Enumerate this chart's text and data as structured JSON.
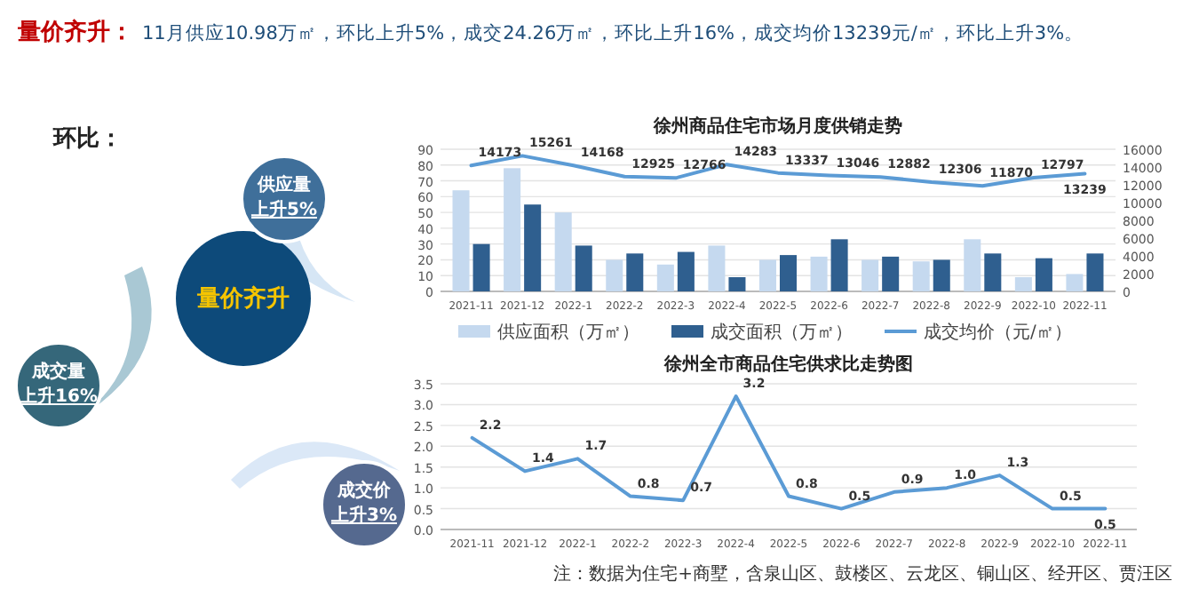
{
  "chart_data": [
    {
      "type": "other",
      "title": "量价齐升：",
      "subtitle": "11月供应10.98万㎡，环比上升5%，成交24.26万㎡，环比上升16%，成交均价13239元/㎡，环比上升3%。",
      "annotations": [
        "环比：",
        "量价齐升",
        "供应量",
        "上升5%",
        "成交量",
        "上升16%",
        "成交价",
        "上升3%"
      ]
    },
    {
      "type": "bar",
      "title": "徐州商品住宅市场月度供销走势",
      "categories": [
        "2021-11",
        "2021-12",
        "2022-1",
        "2022-2",
        "2022-3",
        "2022-4",
        "2022-5",
        "2022-6",
        "2022-7",
        "2022-8",
        "2022-9",
        "2022-10",
        "2022-11"
      ],
      "series": [
        {
          "name": "供应面积（万㎡）",
          "color": "#c5d9ef",
          "values": [
            64,
            78,
            50,
            20,
            17,
            29,
            20,
            22,
            20,
            19,
            33,
            9,
            11
          ]
        },
        {
          "name": "成交面积（万㎡）",
          "color": "#2f5f8f",
          "values": [
            30,
            55,
            29,
            24,
            25,
            9,
            23,
            33,
            22,
            20,
            24,
            21,
            24
          ]
        },
        {
          "name": "成交均价（元/㎡）",
          "type": "line",
          "axis": "y2",
          "color": "#5b9bd5",
          "values": [
            14173,
            15261,
            14168,
            12925,
            12766,
            14283,
            13337,
            13046,
            12882,
            12306,
            11870,
            12797,
            13239
          ],
          "value_labels": [
            "14173",
            "15261",
            "14168",
            "12925",
            "12766",
            "14283",
            "13337",
            "13046",
            "12882",
            "12306",
            "11870",
            "12797",
            "13239"
          ]
        }
      ],
      "ylim": [
        0,
        90
      ],
      "yticks": [
        0,
        10,
        20,
        30,
        40,
        50,
        60,
        70,
        80,
        90
      ],
      "y2lim": [
        0,
        16000
      ],
      "y2ticks": [
        0,
        2000,
        4000,
        6000,
        8000,
        10000,
        12000,
        14000,
        16000
      ],
      "grid": "y",
      "legend": "bottom"
    },
    {
      "type": "line",
      "title": "徐州全市商品住宅供求比走势图",
      "categories": [
        "2021-11",
        "2021-12",
        "2022-1",
        "2022-2",
        "2022-3",
        "2022-4",
        "2022-5",
        "2022-6",
        "2022-7",
        "2022-8",
        "2022-9",
        "2022-10",
        "2022-11"
      ],
      "series": [
        {
          "color": "#5b9bd5",
          "values": [
            2.2,
            1.4,
            1.7,
            0.8,
            0.7,
            3.2,
            0.8,
            0.5,
            0.9,
            1.0,
            1.3,
            0.5,
            0.5
          ],
          "value_labels": [
            "2.2",
            "1.4",
            "1.7",
            "0.8",
            "0.7",
            "3.2",
            "0.8",
            "0.5",
            "0.9",
            "1.0",
            "1.3",
            "0.5",
            "0.5"
          ]
        }
      ],
      "ylim": [
        0,
        3.5
      ],
      "yticks": [
        {
          "value": 0,
          "label": "0.0"
        },
        0.5,
        {
          "value": 1,
          "label": "1.0"
        },
        1.5,
        {
          "value": 2,
          "label": "2.0"
        },
        2.5,
        {
          "value": 3,
          "label": "3.0"
        },
        3.5
      ],
      "grid": "y",
      "annotations": [
        "注：数据为住宅+商墅，含泉山区、鼓楼区、云龙区、铜山区、经开区、贾汪区"
      ]
    }
  ]
}
